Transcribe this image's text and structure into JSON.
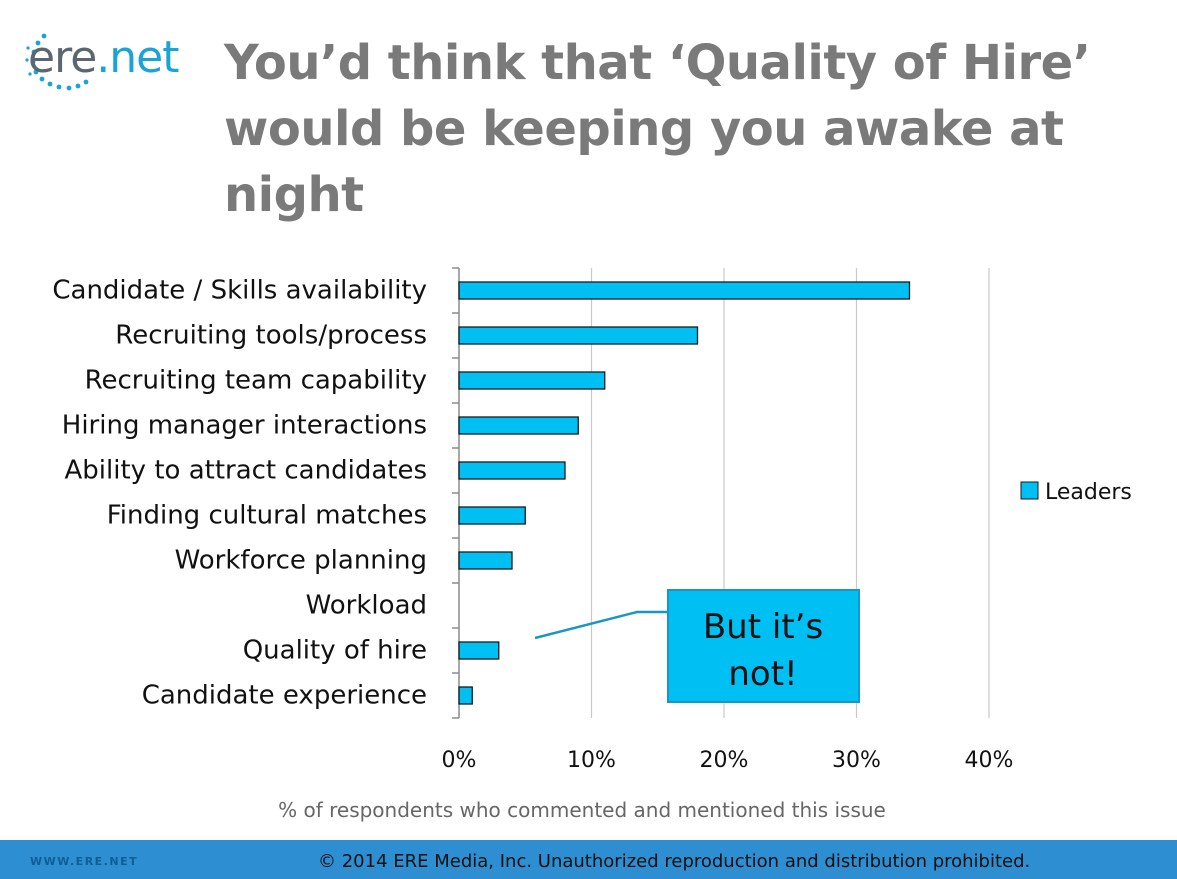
{
  "logo": {
    "brand": "ere",
    "suffix": ".net"
  },
  "slide": {
    "title_line1": "You’d think that ‘Quality of Hire’",
    "title_line2": "would be keeping you awake at night"
  },
  "chart_data": {
    "type": "bar",
    "orientation": "horizontal",
    "categories": [
      "Candidate / Skills availability",
      "Recruiting tools/process",
      "Recruiting team capability",
      "Hiring manager interactions",
      "Ability to attract candidates",
      "Finding cultural matches",
      "Workforce planning",
      "Workload",
      "Quality of hire",
      "Candidate experience"
    ],
    "series": [
      {
        "name": "Leaders",
        "values": [
          34,
          18,
          11,
          9,
          8,
          5,
          4,
          0,
          3,
          1
        ],
        "color": "#00c0f3"
      }
    ],
    "xlabel": "% of respondents who commented and mentioned this issue",
    "xlim": [
      0,
      40
    ],
    "xticks": [
      0,
      10,
      20,
      30,
      40
    ],
    "tick_format": "{v}%",
    "grid": true,
    "legend": "right",
    "callout": {
      "line1": "But it’s",
      "line2": "not!",
      "target": "Quality of hire",
      "fill": "#00c0f3"
    }
  },
  "footer": {
    "url": "WWW.ERE.NET",
    "copyright": "© 2014 ERE Media, Inc.   Unauthorized reproduction and distribution prohibited.",
    "bar_color": "#2d8ed1"
  }
}
